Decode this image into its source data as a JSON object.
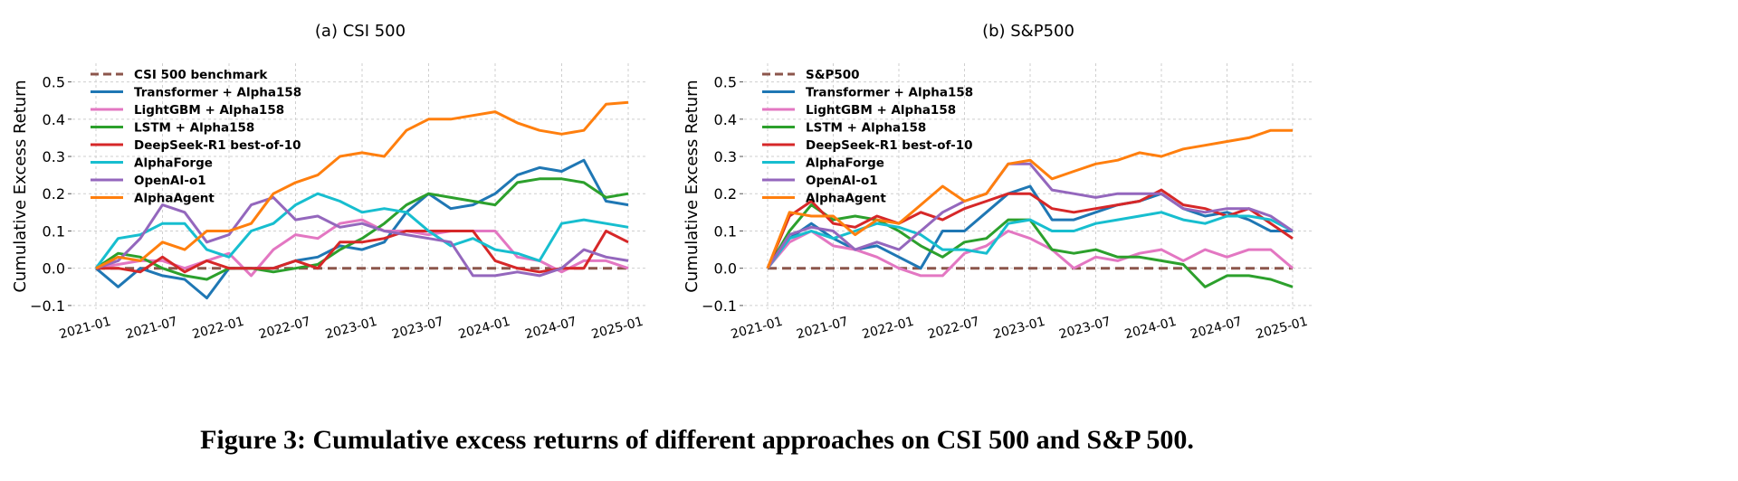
{
  "caption": "Figure 3: Cumulative excess returns of different approaches on CSI 500 and S&P 500.",
  "colors": {
    "benchmark": "#8c564b",
    "Transformer + Alpha158": "#1f77b4",
    "LightGBM + Alpha158": "#e377c2",
    "LSTM + Alpha158": "#2ca02c",
    "DeepSeek-R1 best-of-10": "#d62728",
    "AlphaForge": "#17becf",
    "OpenAI-o1": "#9467bd",
    "AlphaAgent": "#ff7f0e"
  },
  "chart_data": [
    {
      "type": "line",
      "title": "(a) CSI 500",
      "ylabel": "Cumulative Excess Return",
      "xlabel": "",
      "ylim": [
        -0.11,
        0.55
      ],
      "yticks": [
        "−0.1",
        "0.0",
        "0.1",
        "0.2",
        "0.3",
        "0.4",
        "0.5"
      ],
      "xticks": [
        "2021-01",
        "2021-07",
        "2022-01",
        "2022-07",
        "2023-01",
        "2023-07",
        "2024-01",
        "2024-07",
        "2025-01"
      ],
      "grid": true,
      "legend_placement": "top-left",
      "x": [
        "2021-01",
        "2021-03",
        "2021-05",
        "2021-07",
        "2021-09",
        "2021-11",
        "2022-01",
        "2022-03",
        "2022-05",
        "2022-07",
        "2022-09",
        "2022-11",
        "2023-01",
        "2023-03",
        "2023-05",
        "2023-07",
        "2023-09",
        "2023-11",
        "2024-01",
        "2024-03",
        "2024-05",
        "2024-07",
        "2024-09",
        "2024-11",
        "2025-01"
      ],
      "series": [
        {
          "name": "CSI 500 benchmark",
          "dashed": true,
          "values": [
            0,
            0,
            0,
            0,
            0,
            0,
            0,
            0,
            0,
            0,
            0,
            0,
            0,
            0,
            0,
            0,
            0,
            0,
            0,
            0,
            0,
            0,
            0,
            0,
            0
          ]
        },
        {
          "name": "Transformer + Alpha158",
          "values": [
            0,
            -0.05,
            0.0,
            -0.02,
            -0.03,
            -0.08,
            0.0,
            0.0,
            0.0,
            0.02,
            0.03,
            0.06,
            0.05,
            0.07,
            0.15,
            0.2,
            0.16,
            0.17,
            0.2,
            0.25,
            0.27,
            0.26,
            0.29,
            0.18,
            0.17
          ]
        },
        {
          "name": "LightGBM + Alpha158",
          "values": [
            0,
            0.01,
            0.02,
            0.02,
            0.0,
            0.02,
            0.04,
            -0.02,
            0.05,
            0.09,
            0.08,
            0.12,
            0.13,
            0.1,
            0.1,
            0.09,
            0.1,
            0.1,
            0.1,
            0.03,
            0.02,
            -0.01,
            0.02,
            0.02,
            0.0
          ]
        },
        {
          "name": "LSTM + Alpha158",
          "values": [
            0,
            0.04,
            0.03,
            0.0,
            -0.02,
            -0.03,
            0.0,
            0.0,
            -0.01,
            0.0,
            0.01,
            0.05,
            0.08,
            0.12,
            0.17,
            0.2,
            0.19,
            0.18,
            0.17,
            0.23,
            0.24,
            0.24,
            0.23,
            0.19,
            0.2
          ]
        },
        {
          "name": "DeepSeek-R1 best-of-10",
          "values": [
            0,
            0.0,
            -0.01,
            0.03,
            -0.01,
            0.02,
            0.0,
            0.0,
            0.0,
            0.02,
            0.0,
            0.07,
            0.07,
            0.08,
            0.1,
            0.1,
            0.1,
            0.1,
            0.02,
            0.0,
            -0.01,
            0.0,
            0.0,
            0.1,
            0.07
          ]
        },
        {
          "name": "AlphaForge",
          "values": [
            0,
            0.08,
            0.09,
            0.12,
            0.12,
            0.05,
            0.03,
            0.1,
            0.12,
            0.17,
            0.2,
            0.18,
            0.15,
            0.16,
            0.15,
            0.1,
            0.06,
            0.08,
            0.05,
            0.04,
            0.02,
            0.12,
            0.13,
            0.12,
            0.11
          ]
        },
        {
          "name": "OpenAI-o1",
          "values": [
            0,
            0.02,
            0.08,
            0.17,
            0.15,
            0.07,
            0.09,
            0.17,
            0.19,
            0.13,
            0.14,
            0.11,
            0.12,
            0.1,
            0.09,
            0.08,
            0.07,
            -0.02,
            -0.02,
            -0.01,
            -0.02,
            0.0,
            0.05,
            0.03,
            0.02
          ]
        },
        {
          "name": "AlphaAgent",
          "values": [
            0,
            0.03,
            0.02,
            0.07,
            0.05,
            0.1,
            0.1,
            0.12,
            0.2,
            0.23,
            0.25,
            0.3,
            0.31,
            0.3,
            0.37,
            0.4,
            0.4,
            0.41,
            0.42,
            0.39,
            0.37,
            0.36,
            0.37,
            0.44,
            0.445
          ]
        }
      ]
    },
    {
      "type": "line",
      "title": "(b) S&P500",
      "ylabel": "Cumulative Excess Return",
      "xlabel": "",
      "ylim": [
        -0.11,
        0.55
      ],
      "yticks": [
        "−0.1",
        "0.0",
        "0.1",
        "0.2",
        "0.3",
        "0.4",
        "0.5"
      ],
      "xticks": [
        "2021-01",
        "2021-07",
        "2022-01",
        "2022-07",
        "2023-01",
        "2023-07",
        "2024-01",
        "2024-07",
        "2025-01"
      ],
      "grid": true,
      "legend_placement": "top-left",
      "x": [
        "2021-01",
        "2021-03",
        "2021-05",
        "2021-07",
        "2021-09",
        "2021-11",
        "2022-01",
        "2022-03",
        "2022-05",
        "2022-07",
        "2022-09",
        "2022-11",
        "2023-01",
        "2023-03",
        "2023-05",
        "2023-07",
        "2023-09",
        "2023-11",
        "2024-01",
        "2024-03",
        "2024-05",
        "2024-07",
        "2024-09",
        "2024-11",
        "2025-01"
      ],
      "series": [
        {
          "name": "S&P500",
          "dashed": true,
          "values": [
            0,
            0,
            0,
            0,
            0,
            0,
            0,
            0,
            0,
            0,
            0,
            0,
            0,
            0,
            0,
            0,
            0,
            0,
            0,
            0,
            0,
            0,
            0,
            0,
            0
          ]
        },
        {
          "name": "Transformer + Alpha158",
          "values": [
            0,
            0.08,
            0.12,
            0.08,
            0.05,
            0.06,
            0.03,
            0.0,
            0.1,
            0.1,
            0.15,
            0.2,
            0.22,
            0.13,
            0.13,
            0.15,
            0.17,
            0.18,
            0.2,
            0.16,
            0.14,
            0.15,
            0.13,
            0.1,
            0.1
          ]
        },
        {
          "name": "LightGBM + Alpha158",
          "values": [
            0,
            0.07,
            0.1,
            0.06,
            0.05,
            0.03,
            0.0,
            -0.02,
            -0.02,
            0.04,
            0.06,
            0.1,
            0.08,
            0.05,
            0.0,
            0.03,
            0.02,
            0.04,
            0.05,
            0.02,
            0.05,
            0.03,
            0.05,
            0.05,
            0.0
          ]
        },
        {
          "name": "LSTM + Alpha158",
          "values": [
            0,
            0.1,
            0.17,
            0.13,
            0.14,
            0.13,
            0.1,
            0.06,
            0.03,
            0.07,
            0.08,
            0.13,
            0.13,
            0.05,
            0.04,
            0.05,
            0.03,
            0.03,
            0.02,
            0.01,
            -0.05,
            -0.02,
            -0.02,
            -0.03,
            -0.05
          ]
        },
        {
          "name": "DeepSeek-R1 best-of-10",
          "values": [
            0,
            0.14,
            0.18,
            0.12,
            0.11,
            0.14,
            0.12,
            0.15,
            0.13,
            0.16,
            0.18,
            0.2,
            0.2,
            0.16,
            0.15,
            0.16,
            0.17,
            0.18,
            0.21,
            0.17,
            0.16,
            0.14,
            0.16,
            0.12,
            0.08
          ]
        },
        {
          "name": "AlphaForge",
          "values": [
            0,
            0.08,
            0.1,
            0.08,
            0.1,
            0.12,
            0.11,
            0.09,
            0.05,
            0.05,
            0.04,
            0.12,
            0.13,
            0.1,
            0.1,
            0.12,
            0.13,
            0.14,
            0.15,
            0.13,
            0.12,
            0.14,
            0.14,
            0.13,
            0.1
          ]
        },
        {
          "name": "OpenAI-o1",
          "values": [
            0,
            0.09,
            0.11,
            0.1,
            0.05,
            0.07,
            0.05,
            0.1,
            0.15,
            0.18,
            0.2,
            0.28,
            0.28,
            0.21,
            0.2,
            0.19,
            0.2,
            0.2,
            0.2,
            0.16,
            0.15,
            0.16,
            0.16,
            0.14,
            0.1
          ]
        },
        {
          "name": "AlphaAgent",
          "values": [
            0,
            0.15,
            0.14,
            0.14,
            0.09,
            0.13,
            0.12,
            0.17,
            0.22,
            0.18,
            0.2,
            0.28,
            0.29,
            0.24,
            0.26,
            0.28,
            0.29,
            0.31,
            0.3,
            0.32,
            0.33,
            0.34,
            0.35,
            0.37,
            0.37
          ]
        }
      ]
    }
  ]
}
